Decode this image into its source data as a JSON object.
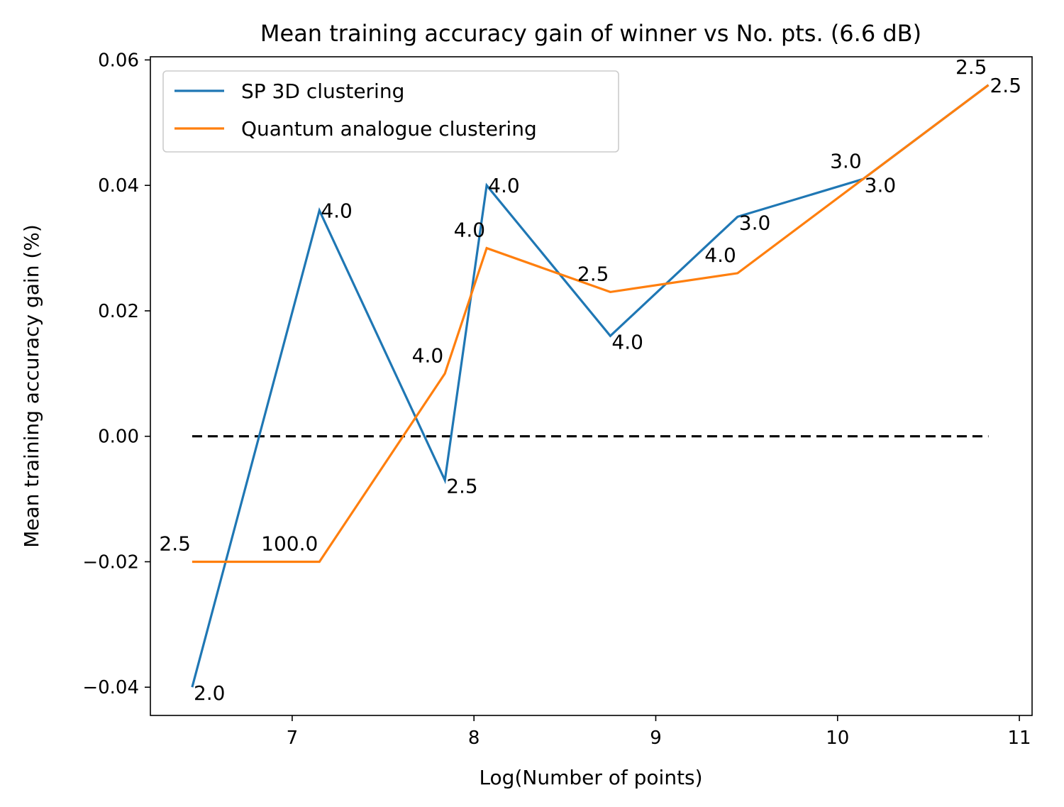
{
  "chart_data": {
    "type": "line",
    "title": "Mean training accuracy gain of winner vs No. pts. (6.6 dB)",
    "xlabel": "Log(Number of points)",
    "ylabel": "Mean training accuracy gain (%)",
    "xlim": [
      6.22,
      11.07
    ],
    "ylim": [
      -0.0445,
      0.0605
    ],
    "xticks": [
      7,
      8,
      9,
      10,
      11
    ],
    "yticks": [
      -0.04,
      -0.02,
      0.0,
      0.02,
      0.04,
      0.06
    ],
    "xtick_labels": [
      "7",
      "8",
      "9",
      "10",
      "11"
    ],
    "ytick_labels": [
      "−0.04",
      "−0.02",
      "0.00",
      "0.02",
      "0.04",
      "0.06"
    ],
    "grid": false,
    "legend_position": "upper-left",
    "series": [
      {
        "name": "SP 3D clustering",
        "color": "#1f77b4",
        "x": [
          6.45,
          7.15,
          7.84,
          8.07,
          8.75,
          9.45,
          10.14,
          10.83
        ],
        "y": [
          -0.04,
          0.036,
          -0.007,
          0.04,
          0.016,
          0.035,
          0.041,
          0.056
        ]
      },
      {
        "name": "Quantum analogue clustering",
        "color": "#ff7f0e",
        "x": [
          6.45,
          7.15,
          7.84,
          8.07,
          8.75,
          9.45,
          10.14,
          10.83
        ],
        "y": [
          -0.02,
          -0.02,
          0.01,
          0.03,
          0.023,
          0.026,
          0.041,
          0.056
        ]
      }
    ],
    "reference_line": {
      "y": 0.0,
      "x_range": [
        6.45,
        10.83
      ],
      "style": "dashed",
      "color": "#000000"
    },
    "annotations": [
      {
        "text": "2.0",
        "x": 6.45,
        "y": -0.04,
        "side": "below-right"
      },
      {
        "text": "4.0",
        "x": 7.15,
        "y": 0.036,
        "side": "right"
      },
      {
        "text": "2.5",
        "x": 7.84,
        "y": -0.007,
        "side": "below-right"
      },
      {
        "text": "4.0",
        "x": 8.07,
        "y": 0.04,
        "side": "right"
      },
      {
        "text": "4.0",
        "x": 8.75,
        "y": 0.016,
        "side": "below-right"
      },
      {
        "text": "3.0",
        "x": 9.45,
        "y": 0.035,
        "side": "below-right"
      },
      {
        "text": "3.0",
        "x": 10.14,
        "y": 0.041,
        "side": "below-right"
      },
      {
        "text": "2.5",
        "x": 10.83,
        "y": 0.056,
        "side": "right"
      },
      {
        "text": "2.5",
        "x": 6.45,
        "y": -0.02,
        "side": "above-left"
      },
      {
        "text": "100.0",
        "x": 7.15,
        "y": -0.02,
        "side": "above-left"
      },
      {
        "text": "4.0",
        "x": 7.84,
        "y": 0.01,
        "side": "above-left"
      },
      {
        "text": "4.0",
        "x": 8.07,
        "y": 0.03,
        "side": "above-left"
      },
      {
        "text": "2.5",
        "x": 8.75,
        "y": 0.023,
        "side": "above-left"
      },
      {
        "text": "4.0",
        "x": 9.45,
        "y": 0.026,
        "side": "above-left"
      },
      {
        "text": "3.0",
        "x": 10.14,
        "y": 0.041,
        "side": "above-left"
      },
      {
        "text": "2.5",
        "x": 10.83,
        "y": 0.056,
        "side": "above-left"
      }
    ]
  }
}
